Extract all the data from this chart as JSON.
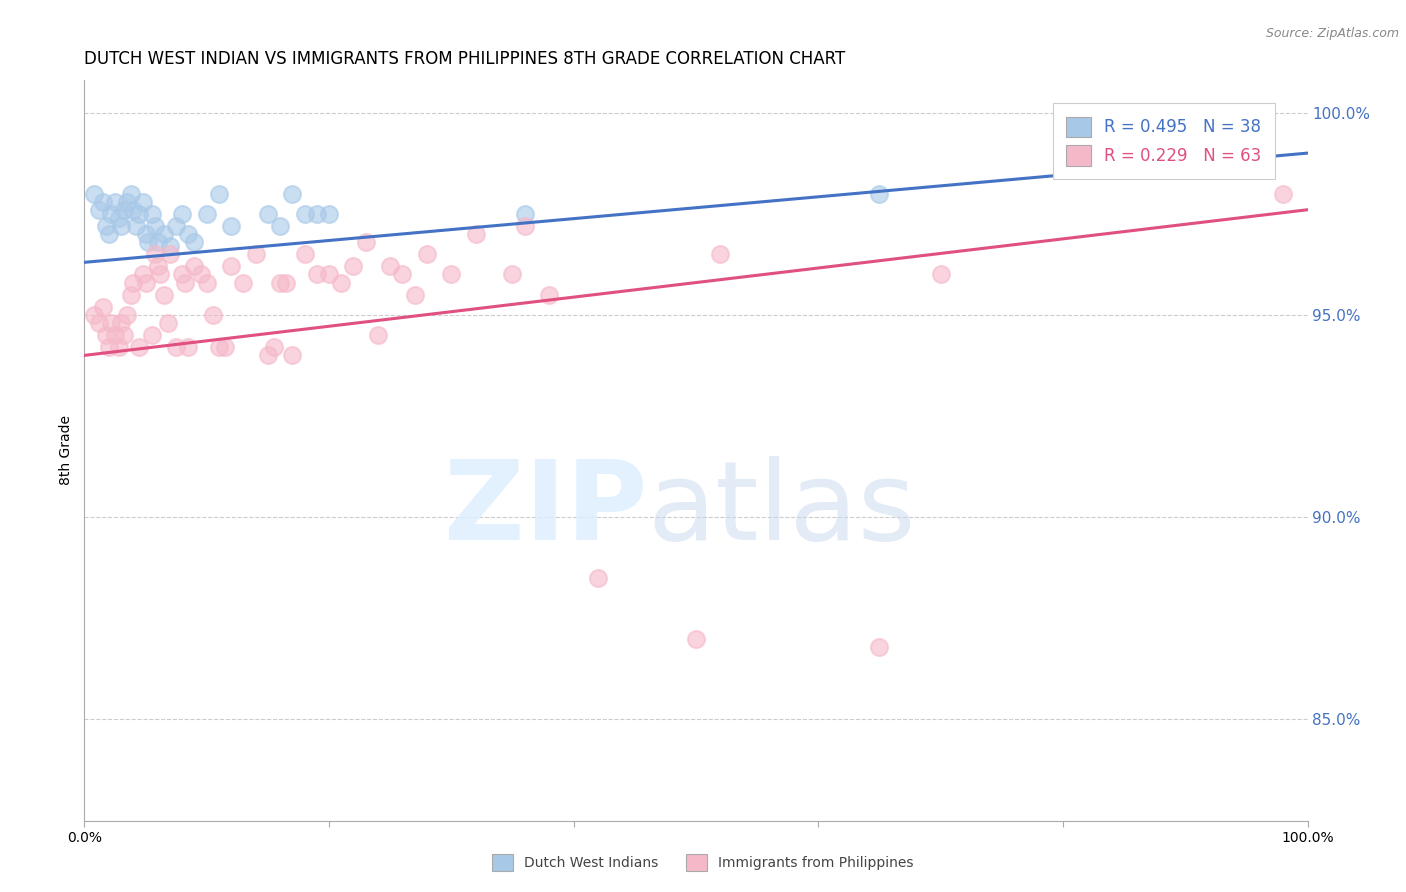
{
  "title": "DUTCH WEST INDIAN VS IMMIGRANTS FROM PHILIPPINES 8TH GRADE CORRELATION CHART",
  "source": "Source: ZipAtlas.com",
  "ylabel": "8th Grade",
  "ylabel_right_labels": [
    "100.0%",
    "95.0%",
    "90.0%",
    "85.0%"
  ],
  "ylabel_right_values": [
    1.0,
    0.95,
    0.9,
    0.85
  ],
  "xlim": [
    0.0,
    1.0
  ],
  "ylim": [
    0.825,
    1.008
  ],
  "legend_r1": "R = 0.495",
  "legend_n1": "N = 38",
  "legend_r2": "R = 0.229",
  "legend_n2": "N = 63",
  "legend_label1": "Dutch West Indians",
  "legend_label2": "Immigrants from Philippines",
  "blue_color": "#a8c8e8",
  "pink_color": "#f5b8c8",
  "blue_line_color": "#4472c4",
  "pink_line_color": "#e05080",
  "blue_scatter_x": [
    0.008,
    0.012,
    0.015,
    0.018,
    0.02,
    0.022,
    0.025,
    0.028,
    0.03,
    0.032,
    0.035,
    0.038,
    0.04,
    0.042,
    0.045,
    0.048,
    0.05,
    0.052,
    0.055,
    0.058,
    0.06,
    0.065,
    0.07,
    0.075,
    0.08,
    0.085,
    0.09,
    0.1,
    0.11,
    0.12,
    0.15,
    0.16,
    0.17,
    0.18,
    0.19,
    0.2,
    0.36,
    0.65
  ],
  "blue_scatter_y": [
    0.98,
    0.976,
    0.978,
    0.972,
    0.97,
    0.975,
    0.978,
    0.974,
    0.972,
    0.976,
    0.978,
    0.98,
    0.976,
    0.972,
    0.975,
    0.978,
    0.97,
    0.968,
    0.975,
    0.972,
    0.968,
    0.97,
    0.967,
    0.972,
    0.975,
    0.97,
    0.968,
    0.975,
    0.98,
    0.972,
    0.975,
    0.972,
    0.98,
    0.975,
    0.975,
    0.975,
    0.975,
    0.98
  ],
  "pink_scatter_x": [
    0.008,
    0.012,
    0.015,
    0.018,
    0.02,
    0.022,
    0.025,
    0.028,
    0.03,
    0.032,
    0.035,
    0.038,
    0.04,
    0.045,
    0.048,
    0.05,
    0.055,
    0.058,
    0.06,
    0.062,
    0.065,
    0.068,
    0.07,
    0.075,
    0.08,
    0.082,
    0.085,
    0.09,
    0.095,
    0.1,
    0.105,
    0.11,
    0.115,
    0.12,
    0.13,
    0.14,
    0.15,
    0.155,
    0.16,
    0.165,
    0.17,
    0.18,
    0.19,
    0.2,
    0.21,
    0.22,
    0.23,
    0.24,
    0.25,
    0.26,
    0.27,
    0.28,
    0.3,
    0.32,
    0.35,
    0.36,
    0.38,
    0.42,
    0.5,
    0.52,
    0.65,
    0.7,
    0.98
  ],
  "pink_scatter_y": [
    0.95,
    0.948,
    0.952,
    0.945,
    0.942,
    0.948,
    0.945,
    0.942,
    0.948,
    0.945,
    0.95,
    0.955,
    0.958,
    0.942,
    0.96,
    0.958,
    0.945,
    0.965,
    0.962,
    0.96,
    0.955,
    0.948,
    0.965,
    0.942,
    0.96,
    0.958,
    0.942,
    0.962,
    0.96,
    0.958,
    0.95,
    0.942,
    0.942,
    0.962,
    0.958,
    0.965,
    0.94,
    0.942,
    0.958,
    0.958,
    0.94,
    0.965,
    0.96,
    0.96,
    0.958,
    0.962,
    0.968,
    0.945,
    0.962,
    0.96,
    0.955,
    0.965,
    0.96,
    0.97,
    0.96,
    0.972,
    0.955,
    0.885,
    0.87,
    0.965,
    0.868,
    0.96,
    0.98
  ],
  "blue_line_x": [
    0.0,
    1.0
  ],
  "blue_line_y_start": 0.963,
  "blue_line_y_end": 0.99,
  "pink_line_x": [
    0.0,
    1.0
  ],
  "pink_line_y_start": 0.94,
  "pink_line_y_end": 0.976,
  "grid_color": "#cccccc",
  "title_fontsize": 12,
  "axis_fontsize": 10,
  "right_label_color": "#4472c4",
  "background_color": "#ffffff"
}
